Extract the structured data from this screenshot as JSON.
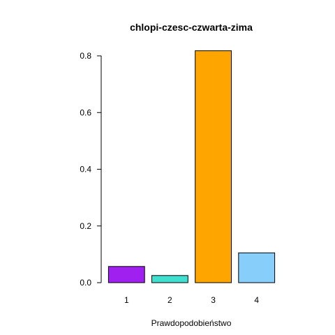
{
  "chart_data": {
    "type": "bar",
    "title": "chlopi-czesc-czwarta-zima",
    "xlabel": "Prawdopodobieństwo",
    "ylabel": "",
    "categories": [
      "1",
      "2",
      "3",
      "4"
    ],
    "values": [
      0.057,
      0.025,
      0.818,
      0.105
    ],
    "colors": [
      "#A020F0",
      "#40E0D0",
      "#FFA500",
      "#87CEFA"
    ],
    "ylim": [
      0,
      0.8
    ],
    "yticks": [
      0.0,
      0.2,
      0.4,
      0.6,
      0.8
    ],
    "ytick_labels": [
      "0.0",
      "0.2",
      "0.4",
      "0.6",
      "0.8"
    ],
    "grid": false,
    "legend": "none"
  }
}
